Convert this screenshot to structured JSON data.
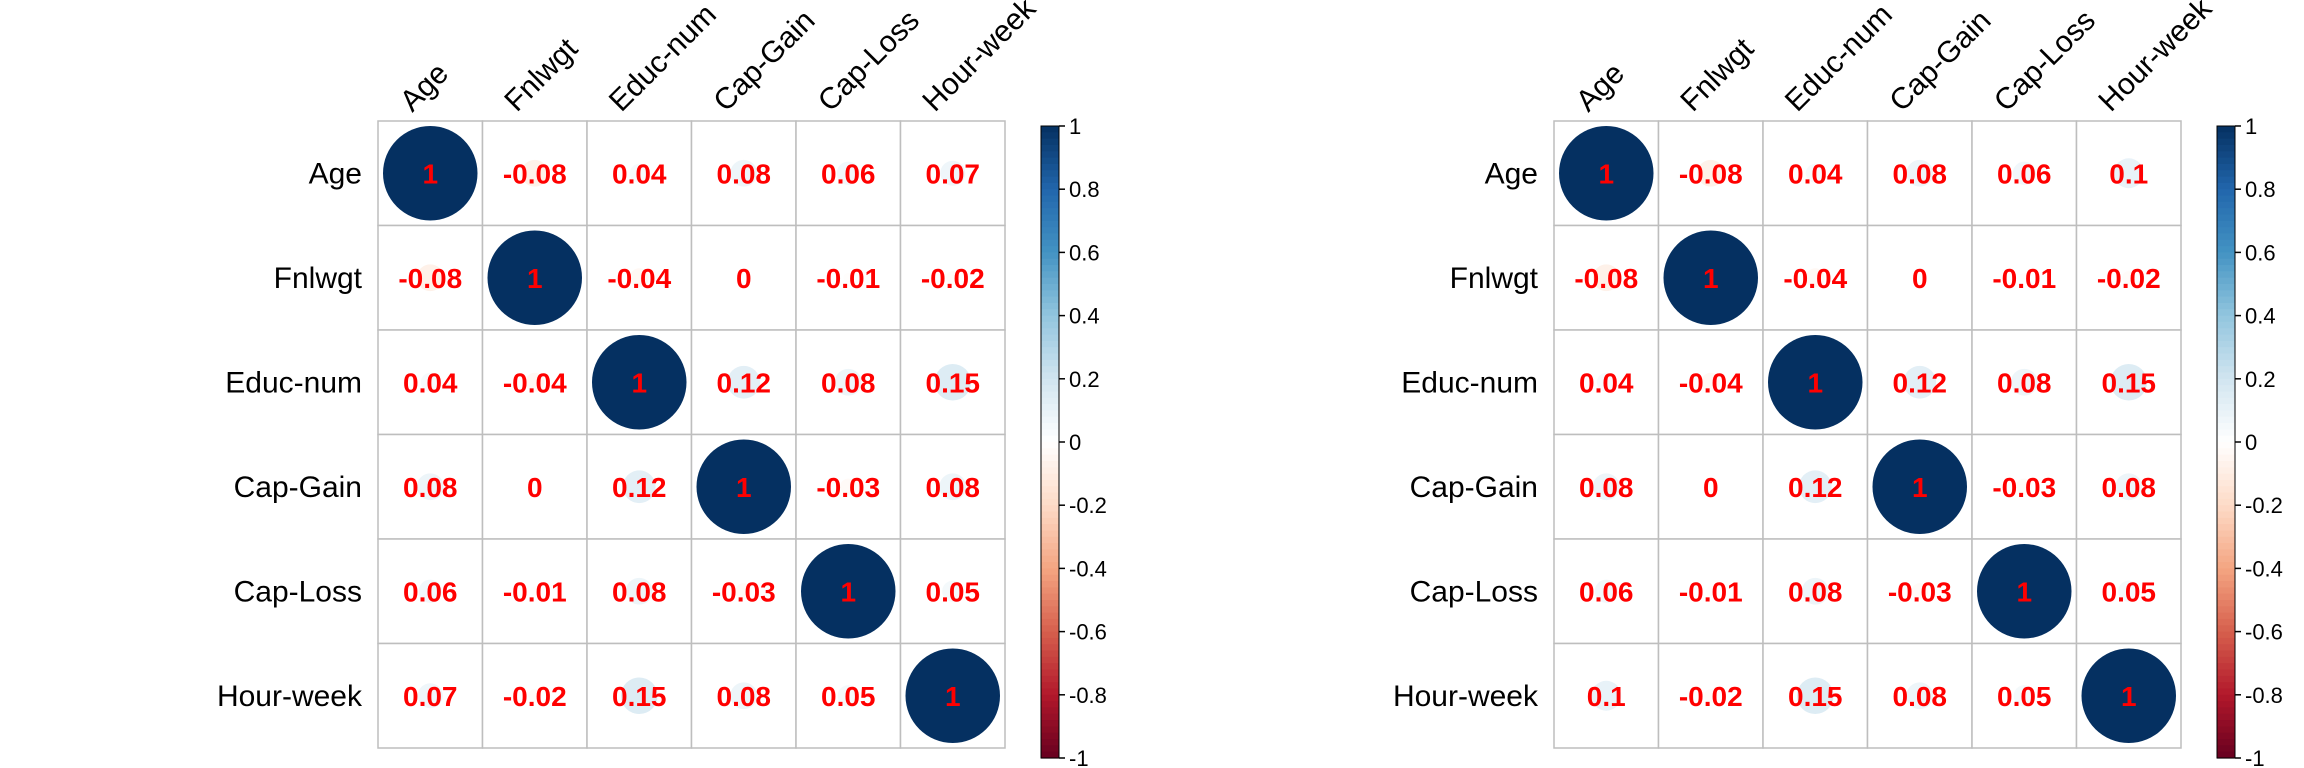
{
  "chart_data": [
    {
      "type": "heatmap",
      "style": "corrplot-circle",
      "variables": [
        "Age",
        "Fnlwgt",
        "Educ-num",
        "Cap-Gain",
        "Cap-Loss",
        "Hour-week"
      ],
      "matrix": [
        [
          1,
          -0.08,
          0.04,
          0.08,
          0.06,
          0.07
        ],
        [
          -0.08,
          1,
          -0.04,
          0,
          -0.01,
          -0.02
        ],
        [
          0.04,
          -0.04,
          1,
          0.12,
          0.08,
          0.15
        ],
        [
          0.08,
          0,
          0.12,
          1,
          -0.03,
          0.08
        ],
        [
          0.06,
          -0.01,
          0.08,
          -0.03,
          1,
          0.05
        ],
        [
          0.07,
          -0.02,
          0.15,
          0.08,
          0.05,
          1
        ]
      ],
      "colorbar": {
        "range": [
          -1,
          1
        ],
        "ticks": [
          "1",
          "0.8",
          "0.6",
          "0.4",
          "0.2",
          "0",
          "-0.2",
          "-0.4",
          "-0.6",
          "-0.8",
          "-1"
        ]
      },
      "label_color": "#ff0000",
      "grid": true
    },
    {
      "type": "heatmap",
      "style": "corrplot-circle",
      "variables": [
        "Age",
        "Fnlwgt",
        "Educ-num",
        "Cap-Gain",
        "Cap-Loss",
        "Hour-week"
      ],
      "matrix": [
        [
          1,
          -0.08,
          0.04,
          0.08,
          0.06,
          0.1
        ],
        [
          -0.08,
          1,
          -0.04,
          0,
          -0.01,
          -0.02
        ],
        [
          0.04,
          -0.04,
          1,
          0.12,
          0.08,
          0.15
        ],
        [
          0.08,
          0,
          0.12,
          1,
          -0.03,
          0.08
        ],
        [
          0.06,
          -0.01,
          0.08,
          -0.03,
          1,
          0.05
        ],
        [
          0.1,
          -0.02,
          0.15,
          0.08,
          0.05,
          1
        ]
      ],
      "colorbar": {
        "range": [
          -1,
          1
        ],
        "ticks": [
          "1",
          "0.8",
          "0.6",
          "0.4",
          "0.2",
          "0",
          "-0.2",
          "-0.4",
          "-0.6",
          "-0.8",
          "-1"
        ]
      },
      "label_color": "#ff0000",
      "grid": true
    }
  ]
}
